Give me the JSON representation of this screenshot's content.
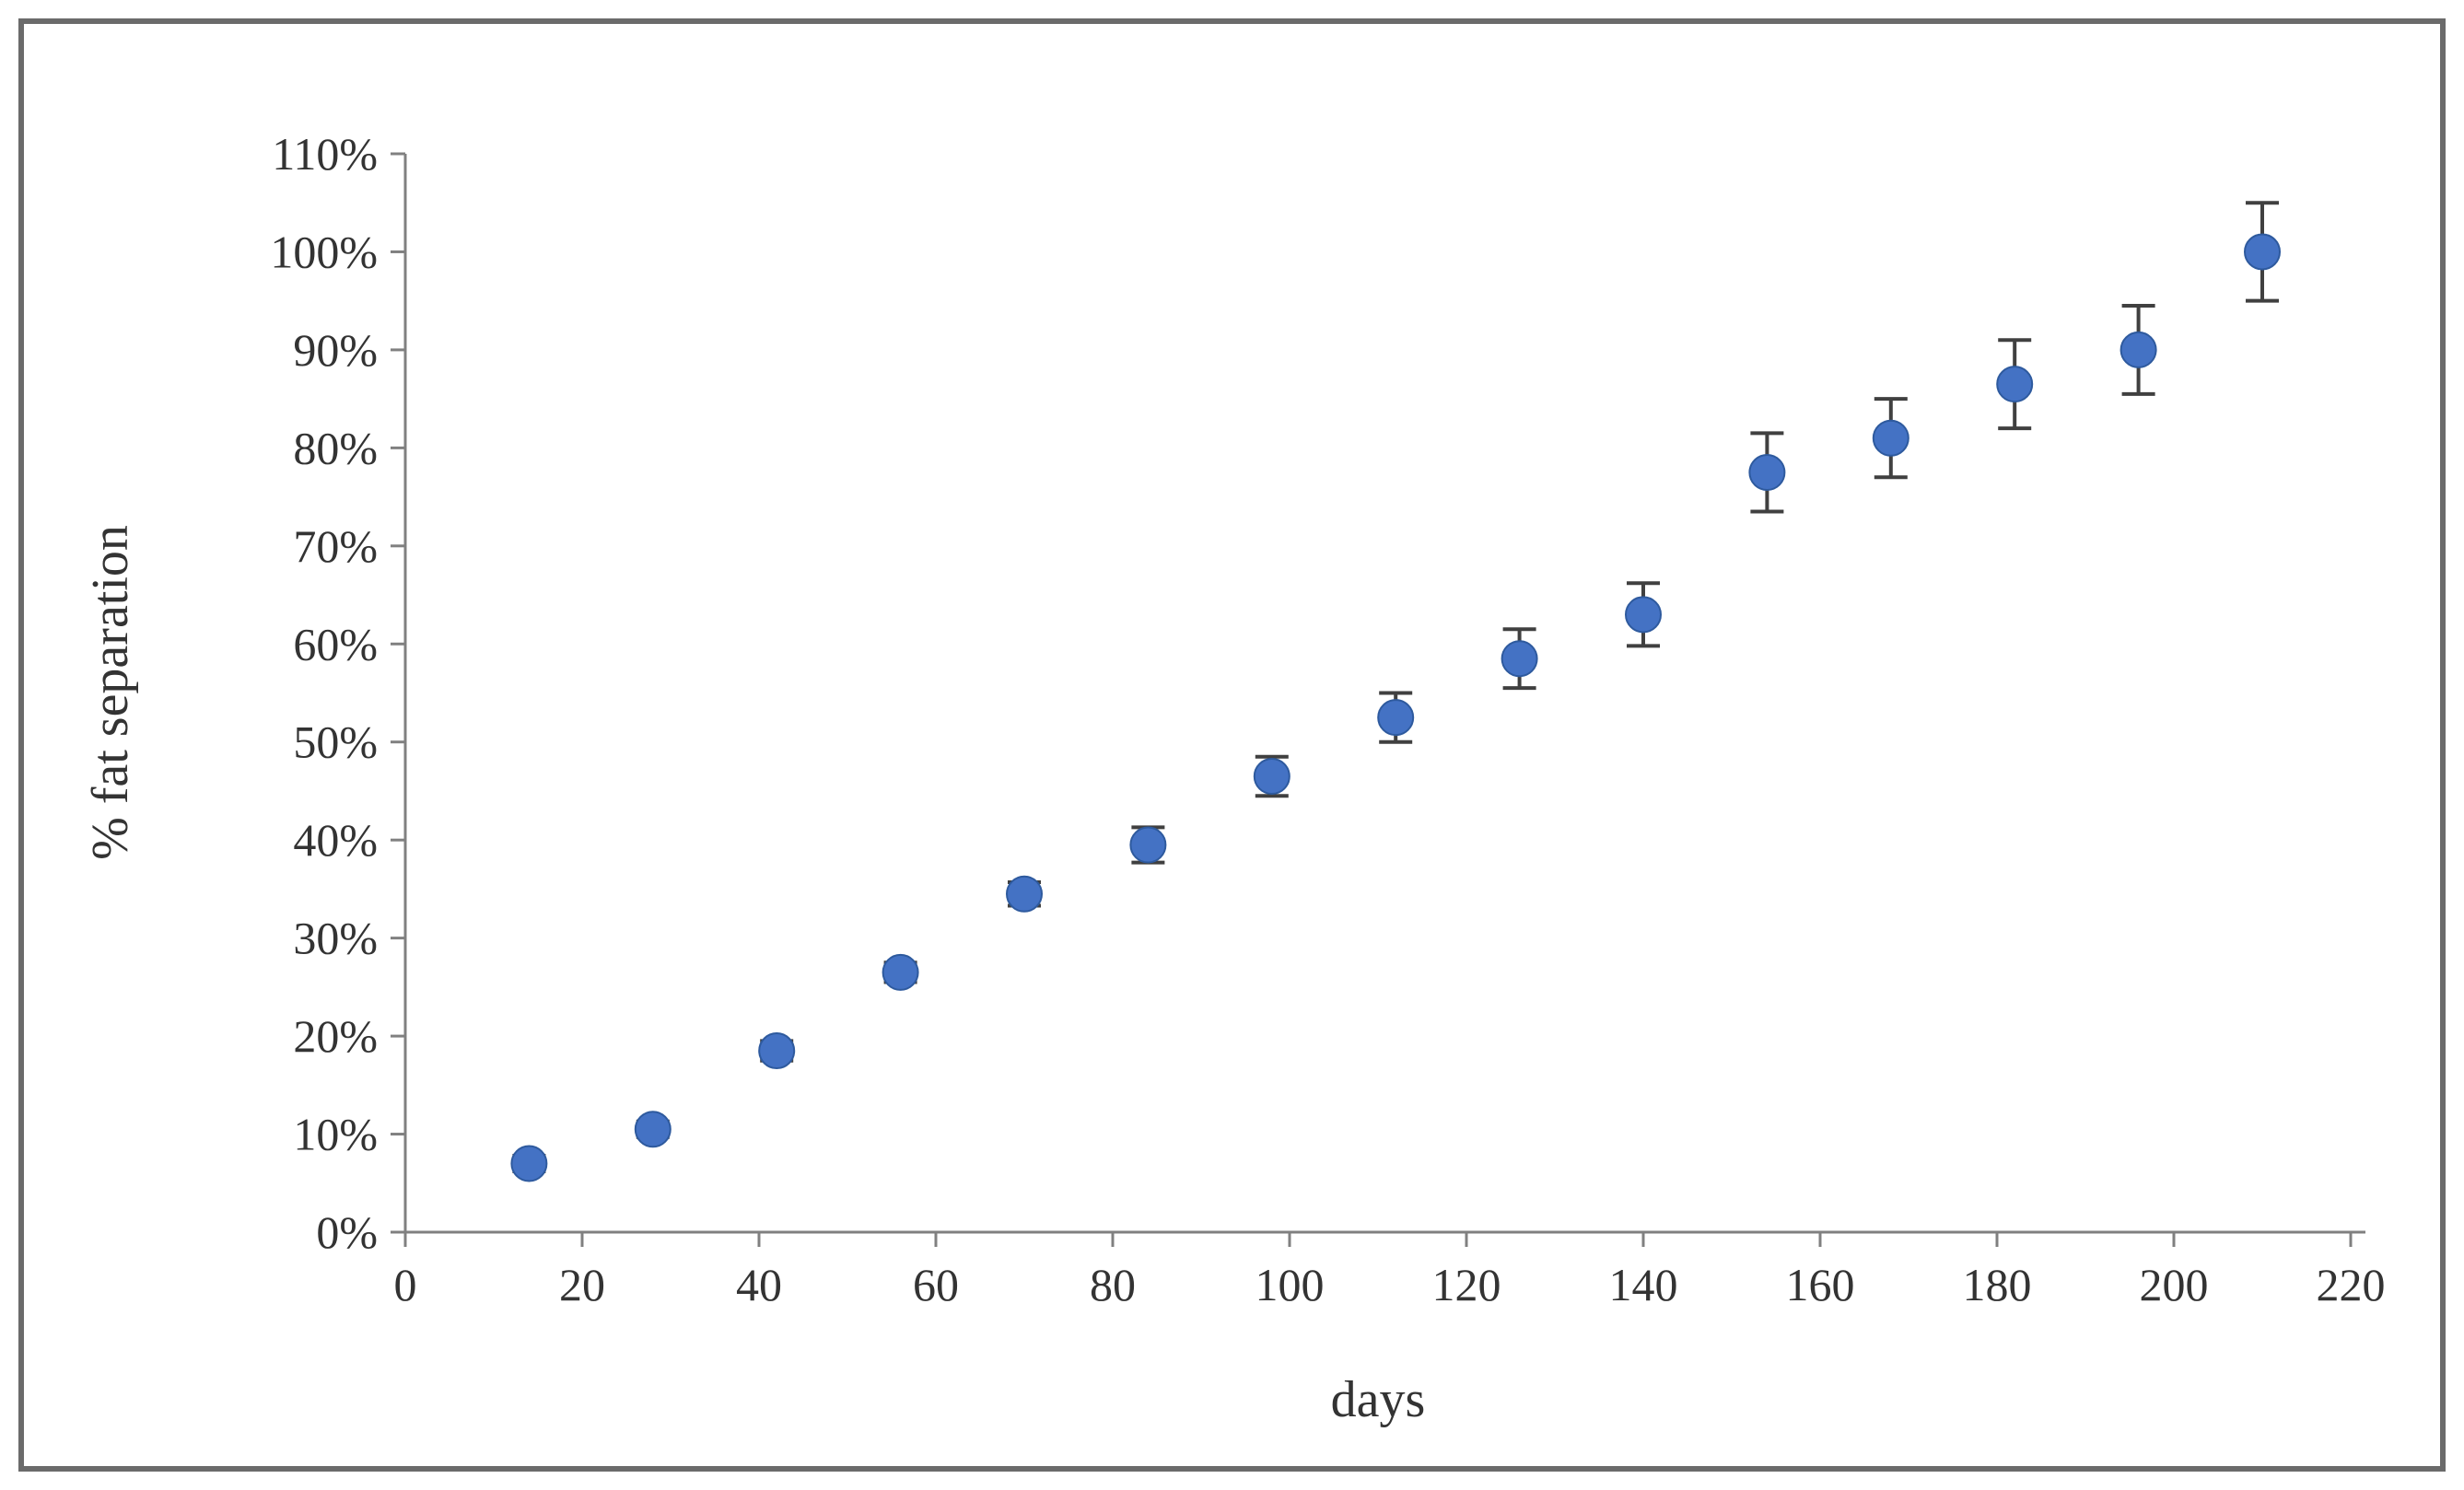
{
  "page": {
    "background": "#ffffff",
    "frame_border_color": "#6b6b6b"
  },
  "chart_data": {
    "type": "scatter",
    "title": "",
    "xlabel": "days",
    "ylabel": "% fat separation",
    "xlim": [
      0,
      220
    ],
    "xtick_step": 20,
    "ylim": [
      0,
      110
    ],
    "ytick_step": 10,
    "ytick_suffix": "%",
    "grid": false,
    "legend": "none",
    "style": {
      "axis_color": "#808080",
      "text_color": "#333333",
      "error_color": "#404040"
    },
    "series": [
      {
        "name": "% fat separation",
        "marker": "circle",
        "marker_color": "#4472C4",
        "marker_stroke": "#2E5A9E",
        "error_bars": true,
        "points": [
          {
            "x": 14,
            "y": 7,
            "err": 0.8
          },
          {
            "x": 28,
            "y": 10.5,
            "err": 0.8
          },
          {
            "x": 42,
            "y": 18.5,
            "err": 1.0
          },
          {
            "x": 56,
            "y": 26.5,
            "err": 1.0
          },
          {
            "x": 70,
            "y": 34.5,
            "err": 1.2
          },
          {
            "x": 84,
            "y": 39.5,
            "err": 1.8
          },
          {
            "x": 98,
            "y": 46.5,
            "err": 2.0
          },
          {
            "x": 112,
            "y": 52.5,
            "err": 2.5
          },
          {
            "x": 126,
            "y": 58.5,
            "err": 3.0
          },
          {
            "x": 140,
            "y": 63,
            "err": 3.2
          },
          {
            "x": 154,
            "y": 77.5,
            "err": 4.0
          },
          {
            "x": 168,
            "y": 81,
            "err": 4.0
          },
          {
            "x": 182,
            "y": 86.5,
            "err": 4.5
          },
          {
            "x": 196,
            "y": 90,
            "err": 4.5
          },
          {
            "x": 210,
            "y": 100,
            "err": 5.0
          }
        ]
      }
    ]
  }
}
